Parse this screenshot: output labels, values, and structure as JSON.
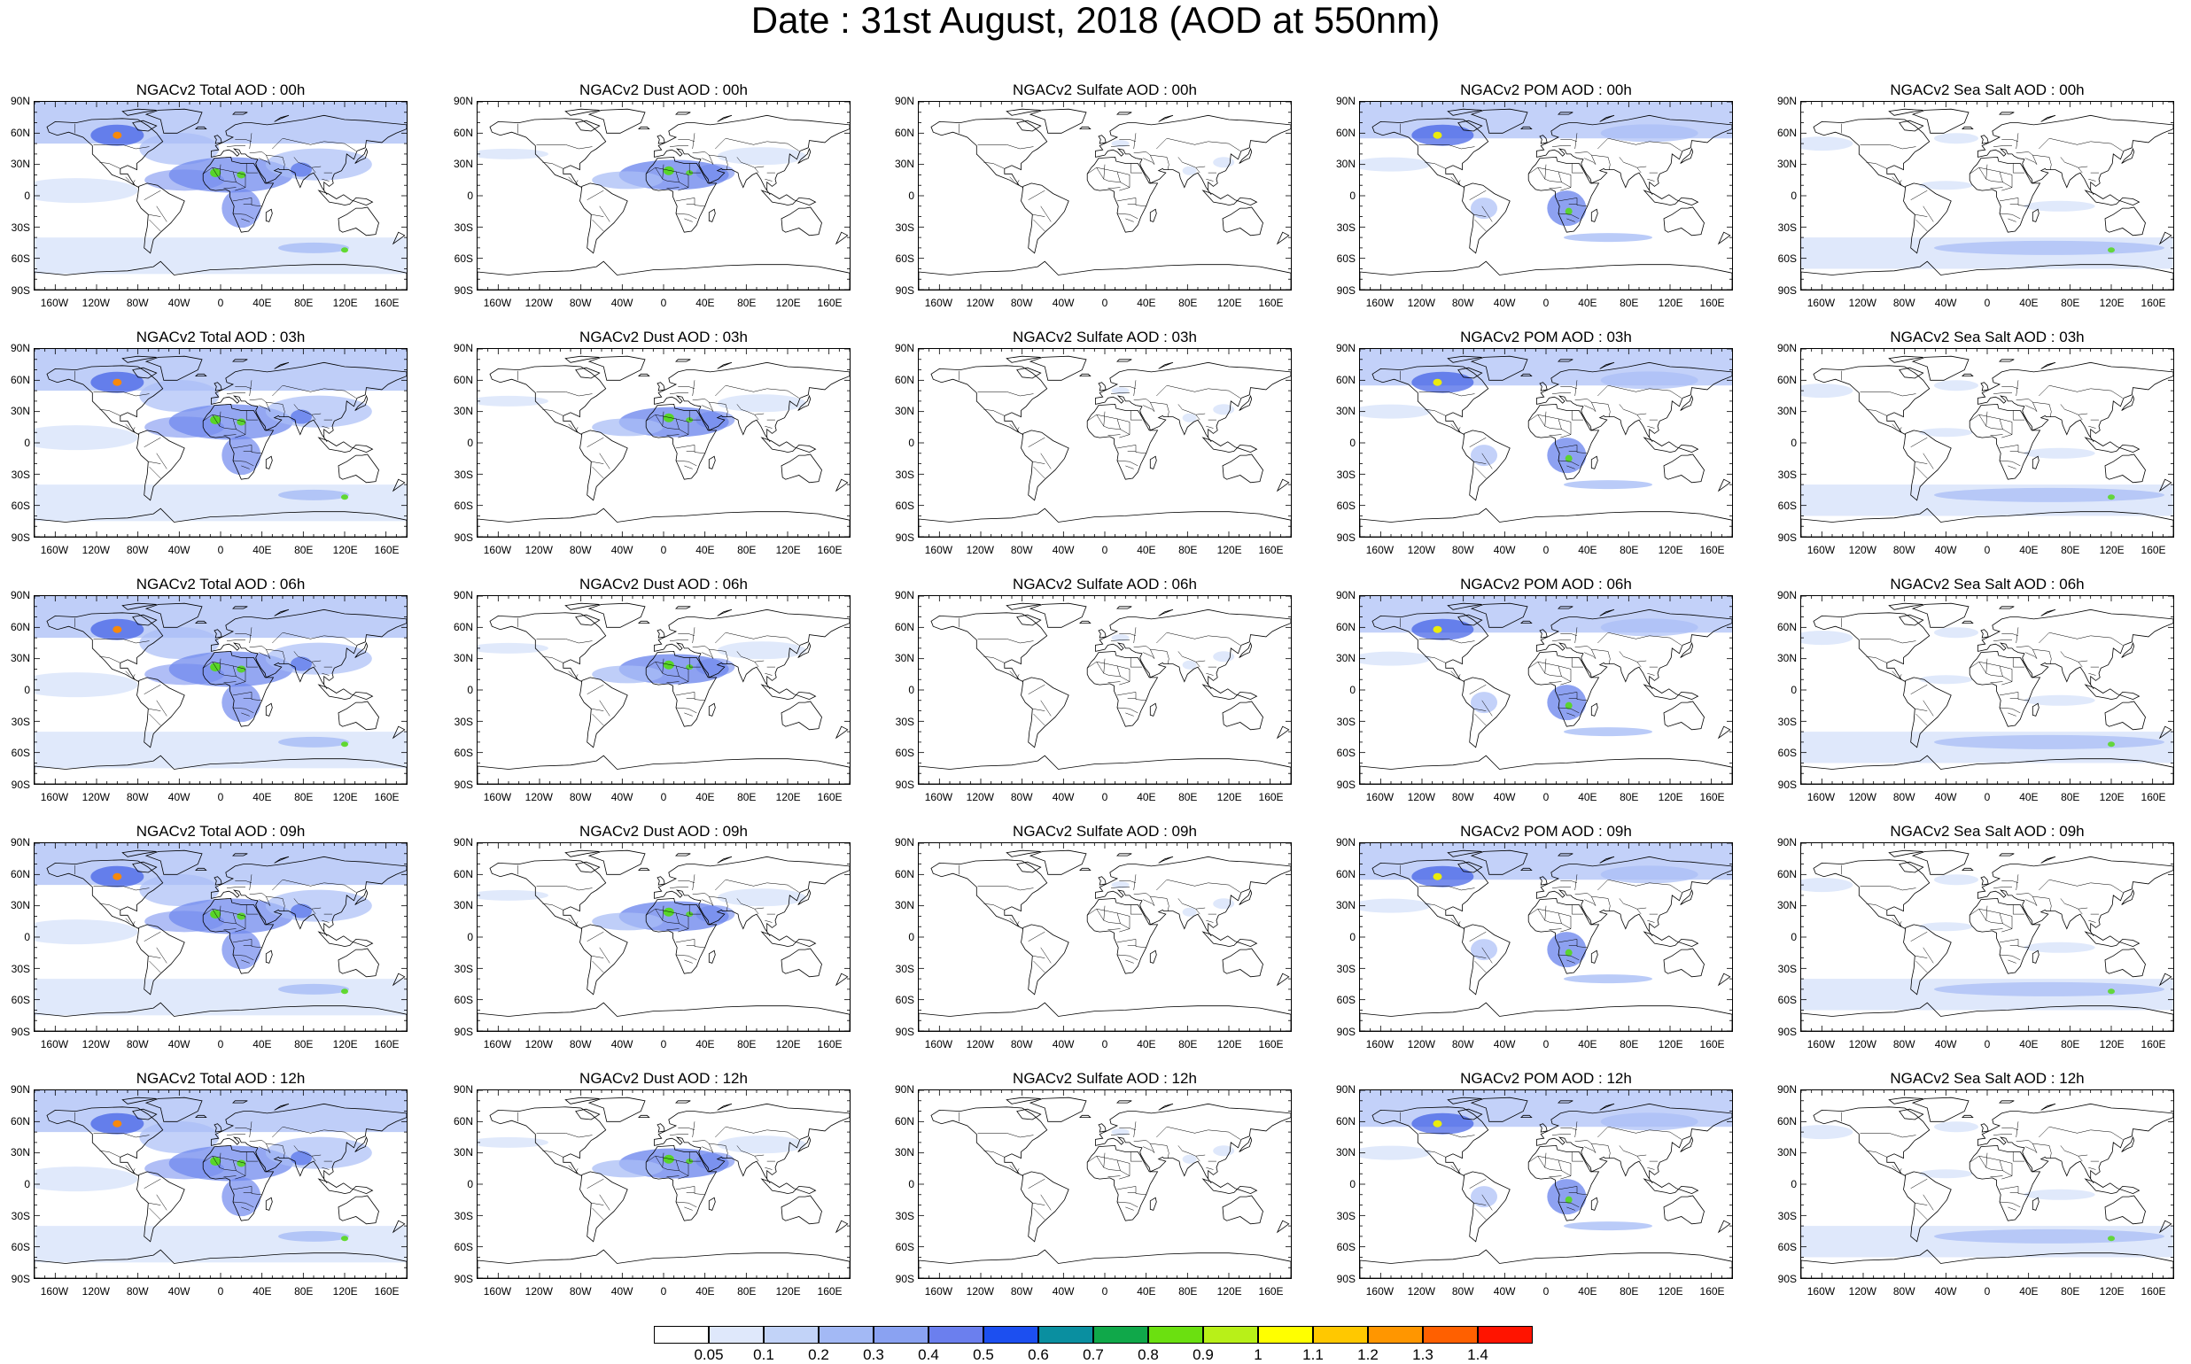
{
  "title": "Date : 31st August, 2018 (AOD at 550nm)",
  "lat_labels": [
    "90N",
    "60N",
    "30N",
    "0",
    "30S",
    "60S",
    "90S"
  ],
  "lon_labels": [
    "160W",
    "120W",
    "80W",
    "40W",
    "0",
    "40E",
    "80E",
    "120E",
    "160E"
  ],
  "panels": [
    {
      "title": "NGACv2 Total AOD : 00h",
      "kind": "total"
    },
    {
      "title": "NGACv2 Dust AOD : 00h",
      "kind": "dust"
    },
    {
      "title": "NGACv2 Sulfate AOD : 00h",
      "kind": "sulfate"
    },
    {
      "title": "NGACv2 POM AOD : 00h",
      "kind": "pom"
    },
    {
      "title": "NGACv2 Sea Salt AOD : 00h",
      "kind": "seasalt"
    },
    {
      "title": "NGACv2 Total AOD : 03h",
      "kind": "total"
    },
    {
      "title": "NGACv2 Dust AOD : 03h",
      "kind": "dust"
    },
    {
      "title": "NGACv2 Sulfate AOD : 03h",
      "kind": "sulfate"
    },
    {
      "title": "NGACv2 POM AOD : 03h",
      "kind": "pom"
    },
    {
      "title": "NGACv2 Sea Salt AOD : 03h",
      "kind": "seasalt"
    },
    {
      "title": "NGACv2 Total AOD : 06h",
      "kind": "total"
    },
    {
      "title": "NGACv2 Dust AOD : 06h",
      "kind": "dust"
    },
    {
      "title": "NGACv2 Sulfate AOD : 06h",
      "kind": "sulfate"
    },
    {
      "title": "NGACv2 POM AOD : 06h",
      "kind": "pom"
    },
    {
      "title": "NGACv2 Sea Salt AOD : 06h",
      "kind": "seasalt"
    },
    {
      "title": "NGACv2 Total AOD : 09h",
      "kind": "total"
    },
    {
      "title": "NGACv2 Dust AOD : 09h",
      "kind": "dust"
    },
    {
      "title": "NGACv2 Sulfate AOD : 09h",
      "kind": "sulfate"
    },
    {
      "title": "NGACv2 POM AOD : 09h",
      "kind": "pom"
    },
    {
      "title": "NGACv2 Sea Salt  AOD : 09h",
      "kind": "seasalt"
    },
    {
      "title": "NGACv2 Total AOD : 12h",
      "kind": "total"
    },
    {
      "title": "NGACv2 Dust AOD : 12h",
      "kind": "dust"
    },
    {
      "title": "NGACv2 Sulfate AOD : 12h",
      "kind": "sulfate"
    },
    {
      "title": "NGACv2 POM  AOD : 12h",
      "kind": "pom"
    },
    {
      "title": "NGACv2 Sea Salt  AOD : 12h",
      "kind": "seasalt"
    }
  ],
  "colorbar": {
    "labels": [
      "0.05",
      "0.1",
      "0.2",
      "0.3",
      "0.4",
      "0.5",
      "0.6",
      "0.7",
      "0.8",
      "0.9",
      "1",
      "1.1",
      "1.2",
      "1.3",
      "1.4"
    ],
    "colors": [
      "#ffffff",
      "#dfe8fb",
      "#c2d3f8",
      "#a3b9f5",
      "#8aa2f2",
      "#6b7fee",
      "#1c4ff0",
      "#0a8fa0",
      "#10a84a",
      "#6be010",
      "#b8f018",
      "#ffff00",
      "#ffc800",
      "#ff9600",
      "#ff6000",
      "#ff1400"
    ]
  },
  "colors": {
    "light": "#dde7fb",
    "mid": "#a9bef6",
    "strong": "#7089ee",
    "deep": "#3d5de6",
    "green": "#55d81c",
    "yellow": "#f2f200",
    "orange": "#ff8a00"
  }
}
